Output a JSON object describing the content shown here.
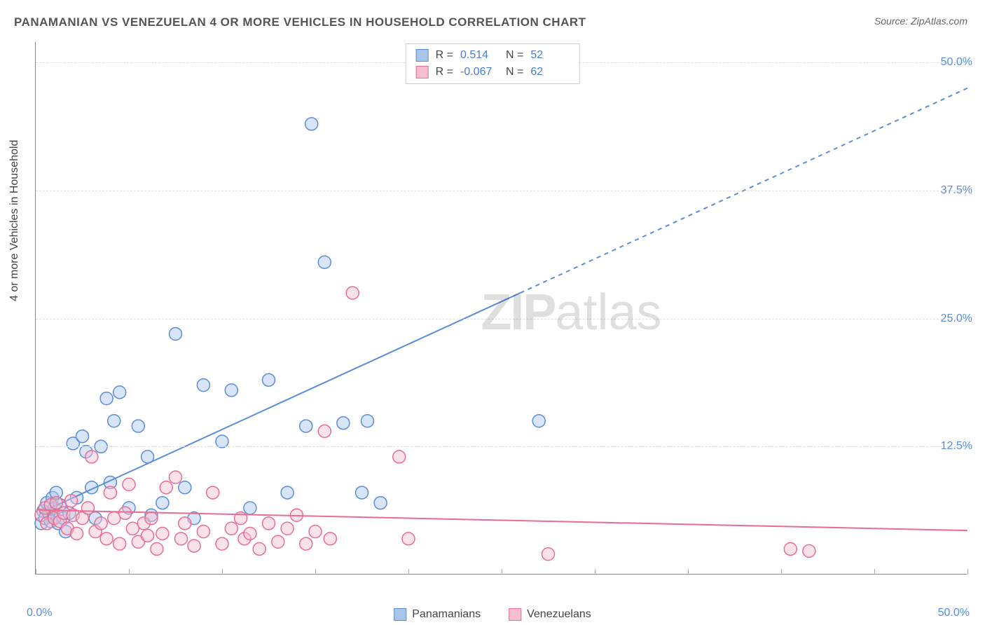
{
  "title": "PANAMANIAN VS VENEZUELAN 4 OR MORE VEHICLES IN HOUSEHOLD CORRELATION CHART",
  "source": "Source: ZipAtlas.com",
  "ylabel": "4 or more Vehicles in Household",
  "watermark_zip": "ZIP",
  "watermark_atlas": "atlas",
  "chart": {
    "type": "scatter",
    "xlim": [
      0,
      50
    ],
    "ylim": [
      0,
      52
    ],
    "x_ticks": [
      0,
      5,
      10,
      15,
      20,
      25,
      30,
      35,
      40,
      45,
      50
    ],
    "y_grid": [
      12.5,
      25.0,
      37.5,
      50.0
    ],
    "y_tick_labels": [
      "12.5%",
      "25.0%",
      "37.5%",
      "50.0%"
    ],
    "xmin_label": "0.0%",
    "xmax_label": "50.0%",
    "background_color": "#ffffff",
    "grid_color": "#dddddd",
    "axis_color": "#888888",
    "tick_label_color": "#5b8dd6",
    "marker_radius": 9,
    "marker_stroke_width": 1.5,
    "marker_fill_opacity": 0.45,
    "trend_line_width": 2,
    "series": [
      {
        "name": "Panamanians",
        "color_fill": "#a8c5ea",
        "color_stroke": "#5b8dd6",
        "R": "0.514",
        "N": "52",
        "trend": {
          "x1": 0.2,
          "y1": 6.0,
          "x2": 26,
          "y2": 27.5,
          "x2_dash": 50,
          "y2_dash": 47.5
        },
        "points": [
          [
            0.3,
            5.0
          ],
          [
            0.4,
            6.2
          ],
          [
            0.5,
            5.5
          ],
          [
            0.6,
            7.0
          ],
          [
            0.7,
            6.0
          ],
          [
            0.8,
            5.2
          ],
          [
            0.9,
            7.5
          ],
          [
            1.0,
            6.5
          ],
          [
            1.1,
            8.0
          ],
          [
            1.2,
            5.0
          ],
          [
            1.3,
            6.8
          ],
          [
            1.5,
            5.5
          ],
          [
            1.6,
            4.2
          ],
          [
            1.8,
            6.0
          ],
          [
            2.0,
            12.8
          ],
          [
            2.2,
            7.5
          ],
          [
            2.5,
            13.5
          ],
          [
            2.7,
            12.0
          ],
          [
            3.0,
            8.5
          ],
          [
            3.2,
            5.5
          ],
          [
            3.5,
            12.5
          ],
          [
            3.8,
            17.2
          ],
          [
            4.0,
            9.0
          ],
          [
            4.2,
            15.0
          ],
          [
            4.5,
            17.8
          ],
          [
            5.0,
            6.5
          ],
          [
            5.5,
            14.5
          ],
          [
            6.0,
            11.5
          ],
          [
            6.2,
            5.8
          ],
          [
            6.8,
            7.0
          ],
          [
            7.5,
            23.5
          ],
          [
            8.0,
            8.5
          ],
          [
            8.5,
            5.5
          ],
          [
            9.0,
            18.5
          ],
          [
            10.0,
            13.0
          ],
          [
            10.5,
            18.0
          ],
          [
            11.5,
            6.5
          ],
          [
            12.5,
            19.0
          ],
          [
            13.5,
            8.0
          ],
          [
            14.5,
            14.5
          ],
          [
            14.8,
            44.0
          ],
          [
            15.5,
            30.5
          ],
          [
            16.5,
            14.8
          ],
          [
            17.5,
            8.0
          ],
          [
            17.8,
            15.0
          ],
          [
            18.5,
            7.0
          ],
          [
            27.0,
            15.0
          ]
        ]
      },
      {
        "name": "Venezuelans",
        "color_fill": "#f5bfd0",
        "color_stroke": "#e86d93",
        "R": "-0.067",
        "N": "62",
        "trend": {
          "x1": 0.2,
          "y1": 6.3,
          "x2": 50,
          "y2": 4.3,
          "x2_dash": 50,
          "y2_dash": 4.3
        },
        "points": [
          [
            0.3,
            5.8
          ],
          [
            0.5,
            6.5
          ],
          [
            0.6,
            5.0
          ],
          [
            0.8,
            6.8
          ],
          [
            1.0,
            5.5
          ],
          [
            1.1,
            7.0
          ],
          [
            1.3,
            5.2
          ],
          [
            1.5,
            6.0
          ],
          [
            1.7,
            4.5
          ],
          [
            1.9,
            7.2
          ],
          [
            2.0,
            5.8
          ],
          [
            2.2,
            4.0
          ],
          [
            2.5,
            5.5
          ],
          [
            2.8,
            6.5
          ],
          [
            3.0,
            11.5
          ],
          [
            3.2,
            4.2
          ],
          [
            3.5,
            5.0
          ],
          [
            3.8,
            3.5
          ],
          [
            4.0,
            8.0
          ],
          [
            4.2,
            5.5
          ],
          [
            4.5,
            3.0
          ],
          [
            4.8,
            6.0
          ],
          [
            5.0,
            8.8
          ],
          [
            5.2,
            4.5
          ],
          [
            5.5,
            3.2
          ],
          [
            5.8,
            5.0
          ],
          [
            6.0,
            3.8
          ],
          [
            6.2,
            5.5
          ],
          [
            6.5,
            2.5
          ],
          [
            6.8,
            4.0
          ],
          [
            7.0,
            8.5
          ],
          [
            7.5,
            9.5
          ],
          [
            7.8,
            3.5
          ],
          [
            8.0,
            5.0
          ],
          [
            8.5,
            2.8
          ],
          [
            9.0,
            4.2
          ],
          [
            9.5,
            8.0
          ],
          [
            10.0,
            3.0
          ],
          [
            10.5,
            4.5
          ],
          [
            11.0,
            5.5
          ],
          [
            11.2,
            3.5
          ],
          [
            11.5,
            4.0
          ],
          [
            12.0,
            2.5
          ],
          [
            12.5,
            5.0
          ],
          [
            13.0,
            3.2
          ],
          [
            13.5,
            4.5
          ],
          [
            14.0,
            5.8
          ],
          [
            14.5,
            3.0
          ],
          [
            15.0,
            4.2
          ],
          [
            15.5,
            14.0
          ],
          [
            15.8,
            3.5
          ],
          [
            17.0,
            27.5
          ],
          [
            19.5,
            11.5
          ],
          [
            20.0,
            3.5
          ],
          [
            27.5,
            2.0
          ],
          [
            40.5,
            2.5
          ],
          [
            41.5,
            2.3
          ]
        ]
      }
    ]
  },
  "stats_box": {
    "r_label": "R =",
    "n_label": "N ="
  },
  "legend": {
    "items": [
      "Panamanians",
      "Venezuelans"
    ]
  }
}
